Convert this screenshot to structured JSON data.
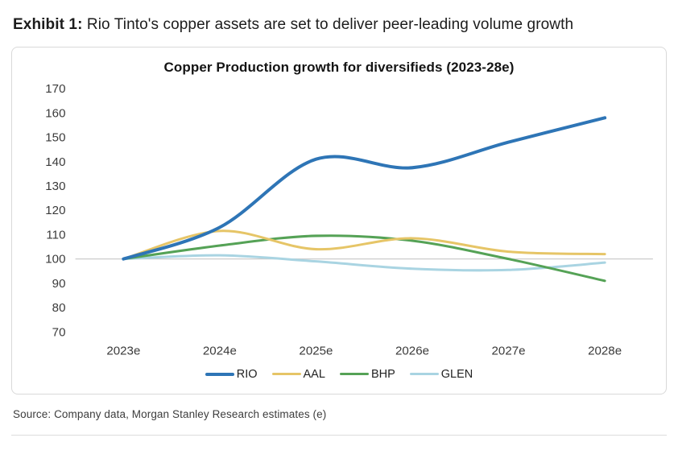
{
  "page": {
    "exhibit_label": "Exhibit 1:",
    "exhibit_title": "Rio Tinto's copper assets are set to deliver peer-leading volume growth",
    "source": "Source: Company data, Morgan Stanley Research estimates (e)"
  },
  "chart_data": {
    "type": "line",
    "title": "Copper Production growth for diversifieds (2023-28e)",
    "categories": [
      "2023e",
      "2024e",
      "2025e",
      "2026e",
      "2027e",
      "2028e"
    ],
    "series": [
      {
        "name": "RIO",
        "color": "#2E75B6",
        "width": 4,
        "values": [
          100,
          113,
          141,
          137.5,
          148,
          158
        ]
      },
      {
        "name": "AAL",
        "color": "#E6C567",
        "width": 3,
        "values": [
          100,
          111.5,
          104,
          108.5,
          103,
          102
        ]
      },
      {
        "name": "BHP",
        "color": "#55A256",
        "width": 3,
        "values": [
          100,
          105.5,
          109.5,
          107.5,
          100,
          91
        ]
      },
      {
        "name": "GLEN",
        "color": "#A9D4E2",
        "width": 3,
        "values": [
          100,
          101.5,
          99,
          96,
          95.5,
          98.5
        ]
      }
    ],
    "ylim": [
      70,
      170
    ],
    "ytick_step": 10,
    "baseline": 100,
    "grid": "single horizontal gridline at 100",
    "legend_position": "bottom"
  }
}
